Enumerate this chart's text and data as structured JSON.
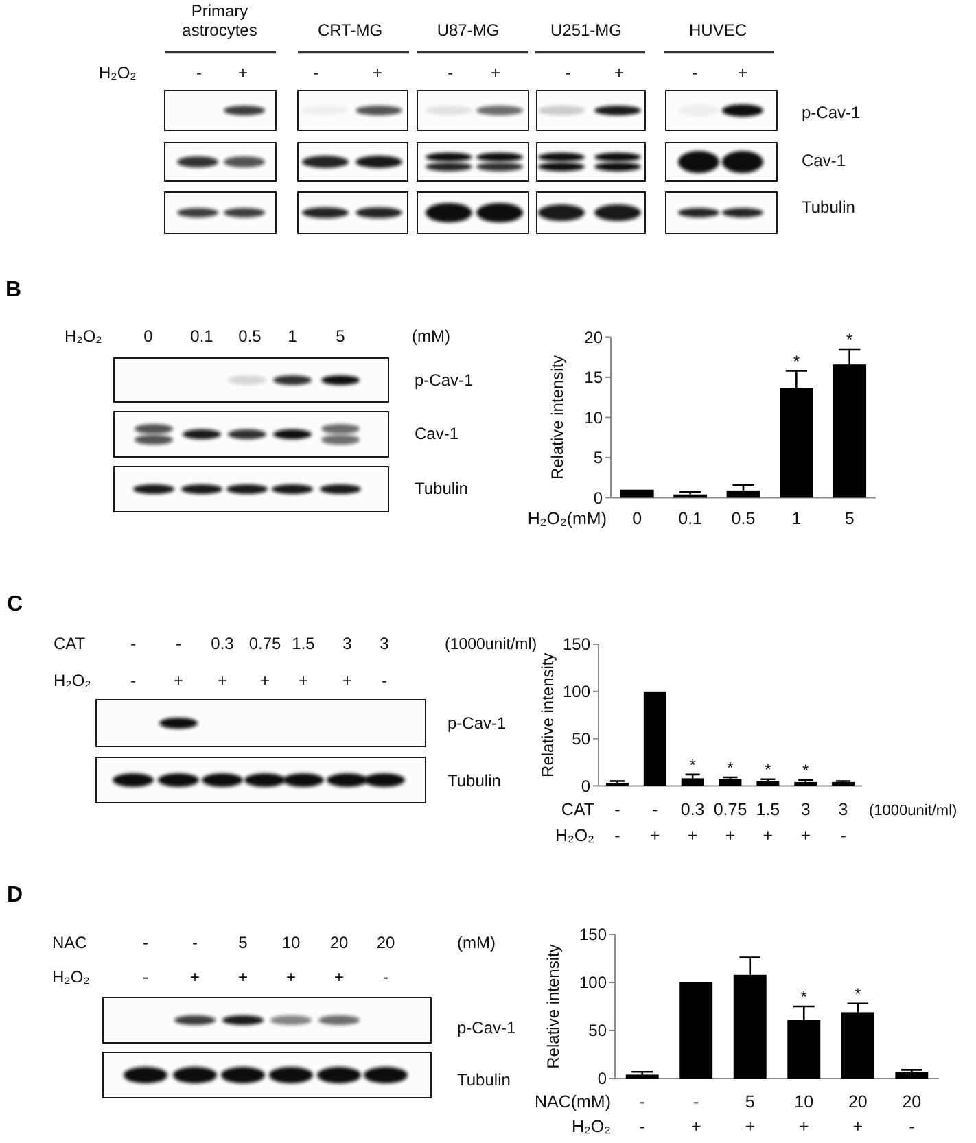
{
  "chart_data": [
    {
      "type": "other",
      "annotations": [
        "Primary astrocytes",
        "CRT-MG",
        "U87-MG",
        "U251-MG",
        "HUVEC",
        "H₂O₂",
        "-",
        "+",
        "-",
        "+",
        "-",
        "+",
        "-",
        "+",
        "-",
        "+",
        "p-Cav-1",
        "Cav-1",
        "Tubulin"
      ]
    },
    {
      "type": "other",
      "title": "B",
      "annotations": [
        "H₂O₂",
        "0",
        "0.1",
        "0.5",
        "1",
        "5",
        "(mM)",
        "p-Cav-1",
        "Cav-1",
        "Tubulin"
      ]
    },
    {
      "type": "bar",
      "categories": [
        "0",
        "0.1",
        "0.5",
        "1",
        "5"
      ],
      "values": [
        1.0,
        0.4,
        0.9,
        13.7,
        16.6
      ],
      "errors": [
        null,
        [
          0.4,
          0.7
        ],
        [
          0.9,
          1.6
        ],
        [
          13.7,
          15.8
        ],
        [
          16.6,
          18.5
        ]
      ],
      "color": "#000000",
      "ylim": [
        0,
        20
      ],
      "yticks": [
        0,
        5,
        10,
        15,
        20
      ],
      "xlabel": "H₂O₂(mM)",
      "ylabel": "Relative intensity",
      "annotations": [
        {
          "text": "*",
          "x": "1",
          "y": 15.8
        },
        {
          "text": "*",
          "x": "5",
          "y": 18.5
        }
      ]
    },
    {
      "type": "other",
      "title": "C",
      "annotations": [
        "CAT",
        "-",
        "-",
        "0.3",
        "0.75",
        "1.5",
        "3",
        "3",
        "(1000unit/ml)",
        "H₂O₂",
        "-",
        "+",
        "+",
        "+",
        "+",
        "+",
        "-",
        "p-Cav-1",
        "Tubulin"
      ]
    },
    {
      "type": "bar",
      "categories": [
        "-",
        "-",
        "0.3",
        "0.75",
        "1.5",
        "3",
        "3"
      ],
      "values": [
        3,
        100,
        8,
        7,
        5,
        4,
        4
      ],
      "errors": [
        [
          3,
          5
        ],
        null,
        [
          8,
          12
        ],
        [
          7,
          9
        ],
        [
          5,
          7
        ],
        [
          4,
          6
        ],
        [
          4,
          5
        ]
      ],
      "color": "#000000",
      "ylim": [
        0,
        150
      ],
      "yticks": [
        0,
        50,
        100,
        150
      ],
      "xlabel": "CAT",
      "ylabel": "Relative intensity",
      "annotations": [
        "(1000unit/ml)",
        "H₂O₂",
        "-",
        "+",
        "+",
        "+",
        "+",
        "+",
        "-",
        {
          "text": "*",
          "x": "0.3",
          "y": 12
        },
        {
          "text": "*",
          "x": "0.75",
          "y": 9
        },
        {
          "text": "*",
          "x": "1.5",
          "y": 7
        },
        {
          "text": "*",
          "x": "3",
          "y": 6
        }
      ]
    },
    {
      "type": "other",
      "title": "D",
      "annotations": [
        "NAC",
        "-",
        "-",
        "5",
        "10",
        "20",
        "20",
        "(mM)",
        "H₂O₂",
        "-",
        "+",
        "+",
        "+",
        "+",
        "-",
        "p-Cav-1",
        "Tubulin"
      ]
    },
    {
      "type": "bar",
      "categories": [
        "-",
        "-",
        "5",
        "10",
        "20",
        "20"
      ],
      "values": [
        4,
        100,
        108,
        61,
        69,
        7
      ],
      "errors": [
        [
          4,
          7
        ],
        null,
        [
          108,
          126
        ],
        [
          61,
          75
        ],
        [
          69,
          78
        ],
        [
          7,
          9
        ]
      ],
      "color": "#000000",
      "ylim": [
        0,
        150
      ],
      "yticks": [
        0,
        50,
        100,
        150
      ],
      "xlabel": "NAC(mM)",
      "ylabel": "Relative intensity",
      "annotations": [
        "H₂O₂",
        "-",
        "+",
        "+",
        "+",
        "+",
        "-",
        {
          "text": "*",
          "x": "10",
          "y": 75
        },
        {
          "text": "*",
          "x": "20",
          "y": 78
        }
      ]
    }
  ]
}
